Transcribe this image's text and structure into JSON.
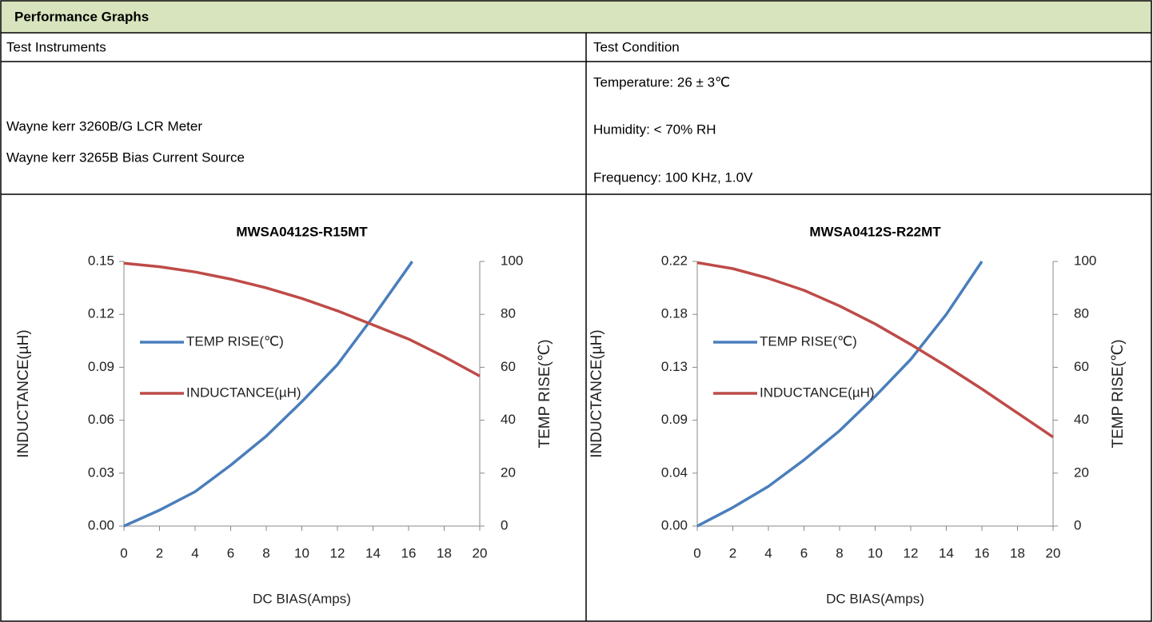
{
  "header": {
    "title": "Performance Graphs"
  },
  "table": {
    "instruments_heading": "Test Instruments",
    "condition_heading": "Test Condition",
    "instruments": [
      "Wayne kerr 3260B/G LCR Meter",
      "Wayne kerr 3265B Bias Current Source"
    ],
    "conditions": [
      "Temperature: 26 ± 3℃",
      "Humidity: < 70% RH",
      "Frequency: 100 KHz, 1.0V"
    ]
  },
  "chart_data": [
    {
      "type": "line",
      "title": "MWSA0412S-R15MT",
      "xlabel": "DC  BIAS(Amps)",
      "ylabel": "INDUCTANCE(µH)",
      "y2label": "TEMP RISE(℃)",
      "xlim": [
        0,
        20
      ],
      "xticks": [
        0,
        2,
        4,
        6,
        8,
        10,
        12,
        14,
        16,
        18,
        20
      ],
      "ylim": [
        0,
        0.15
      ],
      "yticks": [
        {
          "value": 0,
          "label": "0.00"
        },
        0.03,
        0.06,
        0.09,
        0.12,
        0.15
      ],
      "y2lim": [
        0,
        100
      ],
      "y2ticks": [
        0,
        20,
        40,
        60,
        80,
        100
      ],
      "grid": false,
      "legend": "left",
      "series": [
        {
          "name": "TEMP RISE(℃)",
          "color": "#4a7ebb",
          "axis": "y2",
          "x": [
            0,
            2,
            4,
            6,
            8,
            10,
            12,
            14,
            16,
            16.2
          ],
          "values": [
            0,
            6,
            13,
            23,
            34,
            47,
            61,
            79,
            98,
            100
          ]
        },
        {
          "name": "INDUCTANCE(µH)",
          "color": "#be4b48",
          "x": [
            0,
            2,
            4,
            6,
            8,
            10,
            12,
            14,
            16,
            18,
            20
          ],
          "values": [
            0.149,
            0.147,
            0.144,
            0.14,
            0.135,
            0.129,
            0.122,
            0.114,
            0.106,
            0.096,
            0.085
          ]
        }
      ]
    },
    {
      "type": "line",
      "title": "MWSA0412S-R22MT",
      "xlabel": "DC  BIAS(Amps)",
      "ylabel": "INDUCTANCE(µH)",
      "y2label": "TEMP RISE(℃)",
      "xlim": [
        0,
        20
      ],
      "xticks": [
        0,
        2,
        4,
        6,
        8,
        10,
        12,
        14,
        16,
        18,
        20
      ],
      "ylim": [
        0,
        0.22
      ],
      "yticks": [
        {
          "value": 0,
          "label": "0.00"
        },
        {
          "value": 0.044,
          "label": "0.04"
        },
        {
          "value": 0.088,
          "label": "0.09"
        },
        {
          "value": 0.132,
          "label": "0.13"
        },
        {
          "value": 0.176,
          "label": "0.18"
        },
        0.22
      ],
      "y2lim": [
        0,
        100
      ],
      "y2ticks": [
        0,
        20,
        40,
        60,
        80,
        100
      ],
      "grid": false,
      "legend": "left",
      "series": [
        {
          "name": "TEMP RISE(℃)",
          "color": "#4a7ebb",
          "axis": "y2",
          "x": [
            0,
            2,
            4,
            6,
            8,
            10,
            12,
            14,
            16
          ],
          "values": [
            0,
            7,
            15,
            25,
            36,
            49,
            63,
            80,
            100
          ]
        },
        {
          "name": "INDUCTANCE(µH)",
          "color": "#be4b48",
          "x": [
            0,
            2,
            4,
            6,
            8,
            10,
            12,
            14,
            16,
            18,
            20
          ],
          "values": [
            0.219,
            0.214,
            0.206,
            0.196,
            0.183,
            0.168,
            0.151,
            0.133,
            0.114,
            0.094,
            0.074
          ]
        }
      ]
    }
  ]
}
